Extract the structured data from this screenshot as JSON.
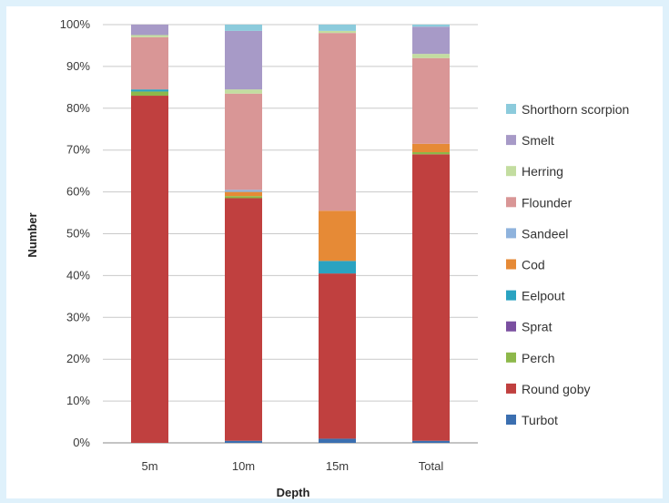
{
  "chart_data": {
    "type": "bar",
    "stacked": true,
    "xlabel": "Depth",
    "ylabel": "Number",
    "ylim": [
      0,
      100
    ],
    "yticks": [
      "0%",
      "10%",
      "20%",
      "30%",
      "40%",
      "50%",
      "60%",
      "70%",
      "80%",
      "90%",
      "100%"
    ],
    "categories": [
      "5m",
      "10m",
      "15m",
      "Total"
    ],
    "legend_position": "right",
    "grid": true,
    "series": [
      {
        "name": "Turbot",
        "color": "#3b6fb0",
        "values": [
          0,
          0.5,
          1,
          0.5
        ]
      },
      {
        "name": "Round goby",
        "color": "#c0403f",
        "values": [
          83,
          58,
          39.5,
          68.5
        ]
      },
      {
        "name": "Perch",
        "color": "#8db84a",
        "values": [
          1,
          0.5,
          0,
          0.5
        ]
      },
      {
        "name": "Sprat",
        "color": "#7a4fa0",
        "values": [
          0,
          0,
          0,
          0
        ]
      },
      {
        "name": "Eelpout",
        "color": "#2aa3c1",
        "values": [
          0.5,
          0,
          3,
          0
        ]
      },
      {
        "name": "Cod",
        "color": "#e68a36",
        "values": [
          0,
          1,
          12,
          2
        ]
      },
      {
        "name": "Sandeel",
        "color": "#8fb3dd",
        "values": [
          0,
          0.5,
          0,
          0
        ]
      },
      {
        "name": "Flounder",
        "color": "#d99696",
        "values": [
          12.5,
          23,
          42.5,
          20.5
        ]
      },
      {
        "name": "Herring",
        "color": "#c3dda0",
        "values": [
          0.5,
          1,
          0.5,
          1
        ]
      },
      {
        "name": "Smelt",
        "color": "#a79ac7",
        "values": [
          2.5,
          14,
          0,
          6.5
        ]
      },
      {
        "name": "Shorthorn scorpion",
        "color": "#8ccbdc",
        "values": [
          0,
          1.5,
          1.5,
          0.5
        ]
      }
    ]
  }
}
